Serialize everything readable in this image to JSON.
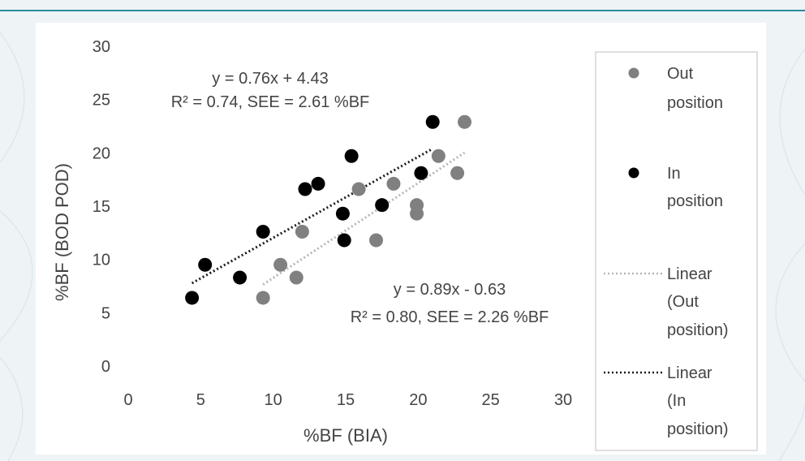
{
  "chart_data": {
    "type": "scatter",
    "xlabel": "%BF (BIA)",
    "ylabel": "%BF (BOD POD)",
    "xlim": [
      0,
      30
    ],
    "ylim": [
      0,
      30
    ],
    "xticks": [
      "0",
      "5",
      "10",
      "15",
      "20",
      "25",
      "30"
    ],
    "yticks": [
      "0",
      "5",
      "10",
      "15",
      "20",
      "25",
      "30"
    ],
    "grid": false,
    "legend_position": "right",
    "colors": {
      "out": "#808080",
      "in": "#000000",
      "trend_out": "#b8b8b8",
      "trend_in": "#1a1a1a"
    },
    "series": [
      {
        "name": "Out position",
        "marker": "circle",
        "points": [
          [
            9.3,
            6.4
          ],
          [
            10.5,
            9.5
          ],
          [
            11.6,
            8.3
          ],
          [
            12.0,
            12.6
          ],
          [
            15.9,
            16.6
          ],
          [
            17.1,
            11.8
          ],
          [
            18.3,
            17.1
          ],
          [
            19.9,
            14.3
          ],
          [
            19.9,
            15.1
          ],
          [
            21.4,
            19.7
          ],
          [
            22.7,
            18.1
          ],
          [
            23.2,
            22.9
          ]
        ]
      },
      {
        "name": "In position",
        "marker": "circle",
        "points": [
          [
            4.4,
            6.4
          ],
          [
            5.3,
            9.5
          ],
          [
            7.7,
            8.3
          ],
          [
            9.3,
            12.6
          ],
          [
            12.2,
            16.6
          ],
          [
            13.1,
            17.1
          ],
          [
            14.8,
            14.3
          ],
          [
            14.9,
            11.8
          ],
          [
            15.4,
            19.7
          ],
          [
            17.5,
            15.1
          ],
          [
            20.2,
            18.1
          ],
          [
            21.0,
            22.9
          ]
        ]
      }
    ],
    "trendlines": [
      {
        "series": "Out position",
        "legend_label": "Linear (Out position)",
        "slope": 0.89,
        "intercept": -0.63,
        "x_range": [
          9.3,
          23.2
        ],
        "equation": "y = 0.89x - 0.63",
        "stats": "R² = 0.80, SEE = 2.26 %BF"
      },
      {
        "series": "In position",
        "legend_label": "Linear (In position)",
        "slope": 0.76,
        "intercept": 4.43,
        "x_range": [
          4.4,
          21.0
        ],
        "equation": "y = 0.76x + 4.43",
        "stats": "R² = 0.74, SEE = 2.61 %BF"
      }
    ],
    "legend": {
      "out_lines": [
        "Out",
        "position"
      ],
      "in_lines": [
        "In",
        "position"
      ],
      "linear_out_lines": [
        "Linear",
        "(Out",
        "position)"
      ],
      "linear_in_lines": [
        "Linear",
        "(In",
        "position)"
      ]
    }
  }
}
